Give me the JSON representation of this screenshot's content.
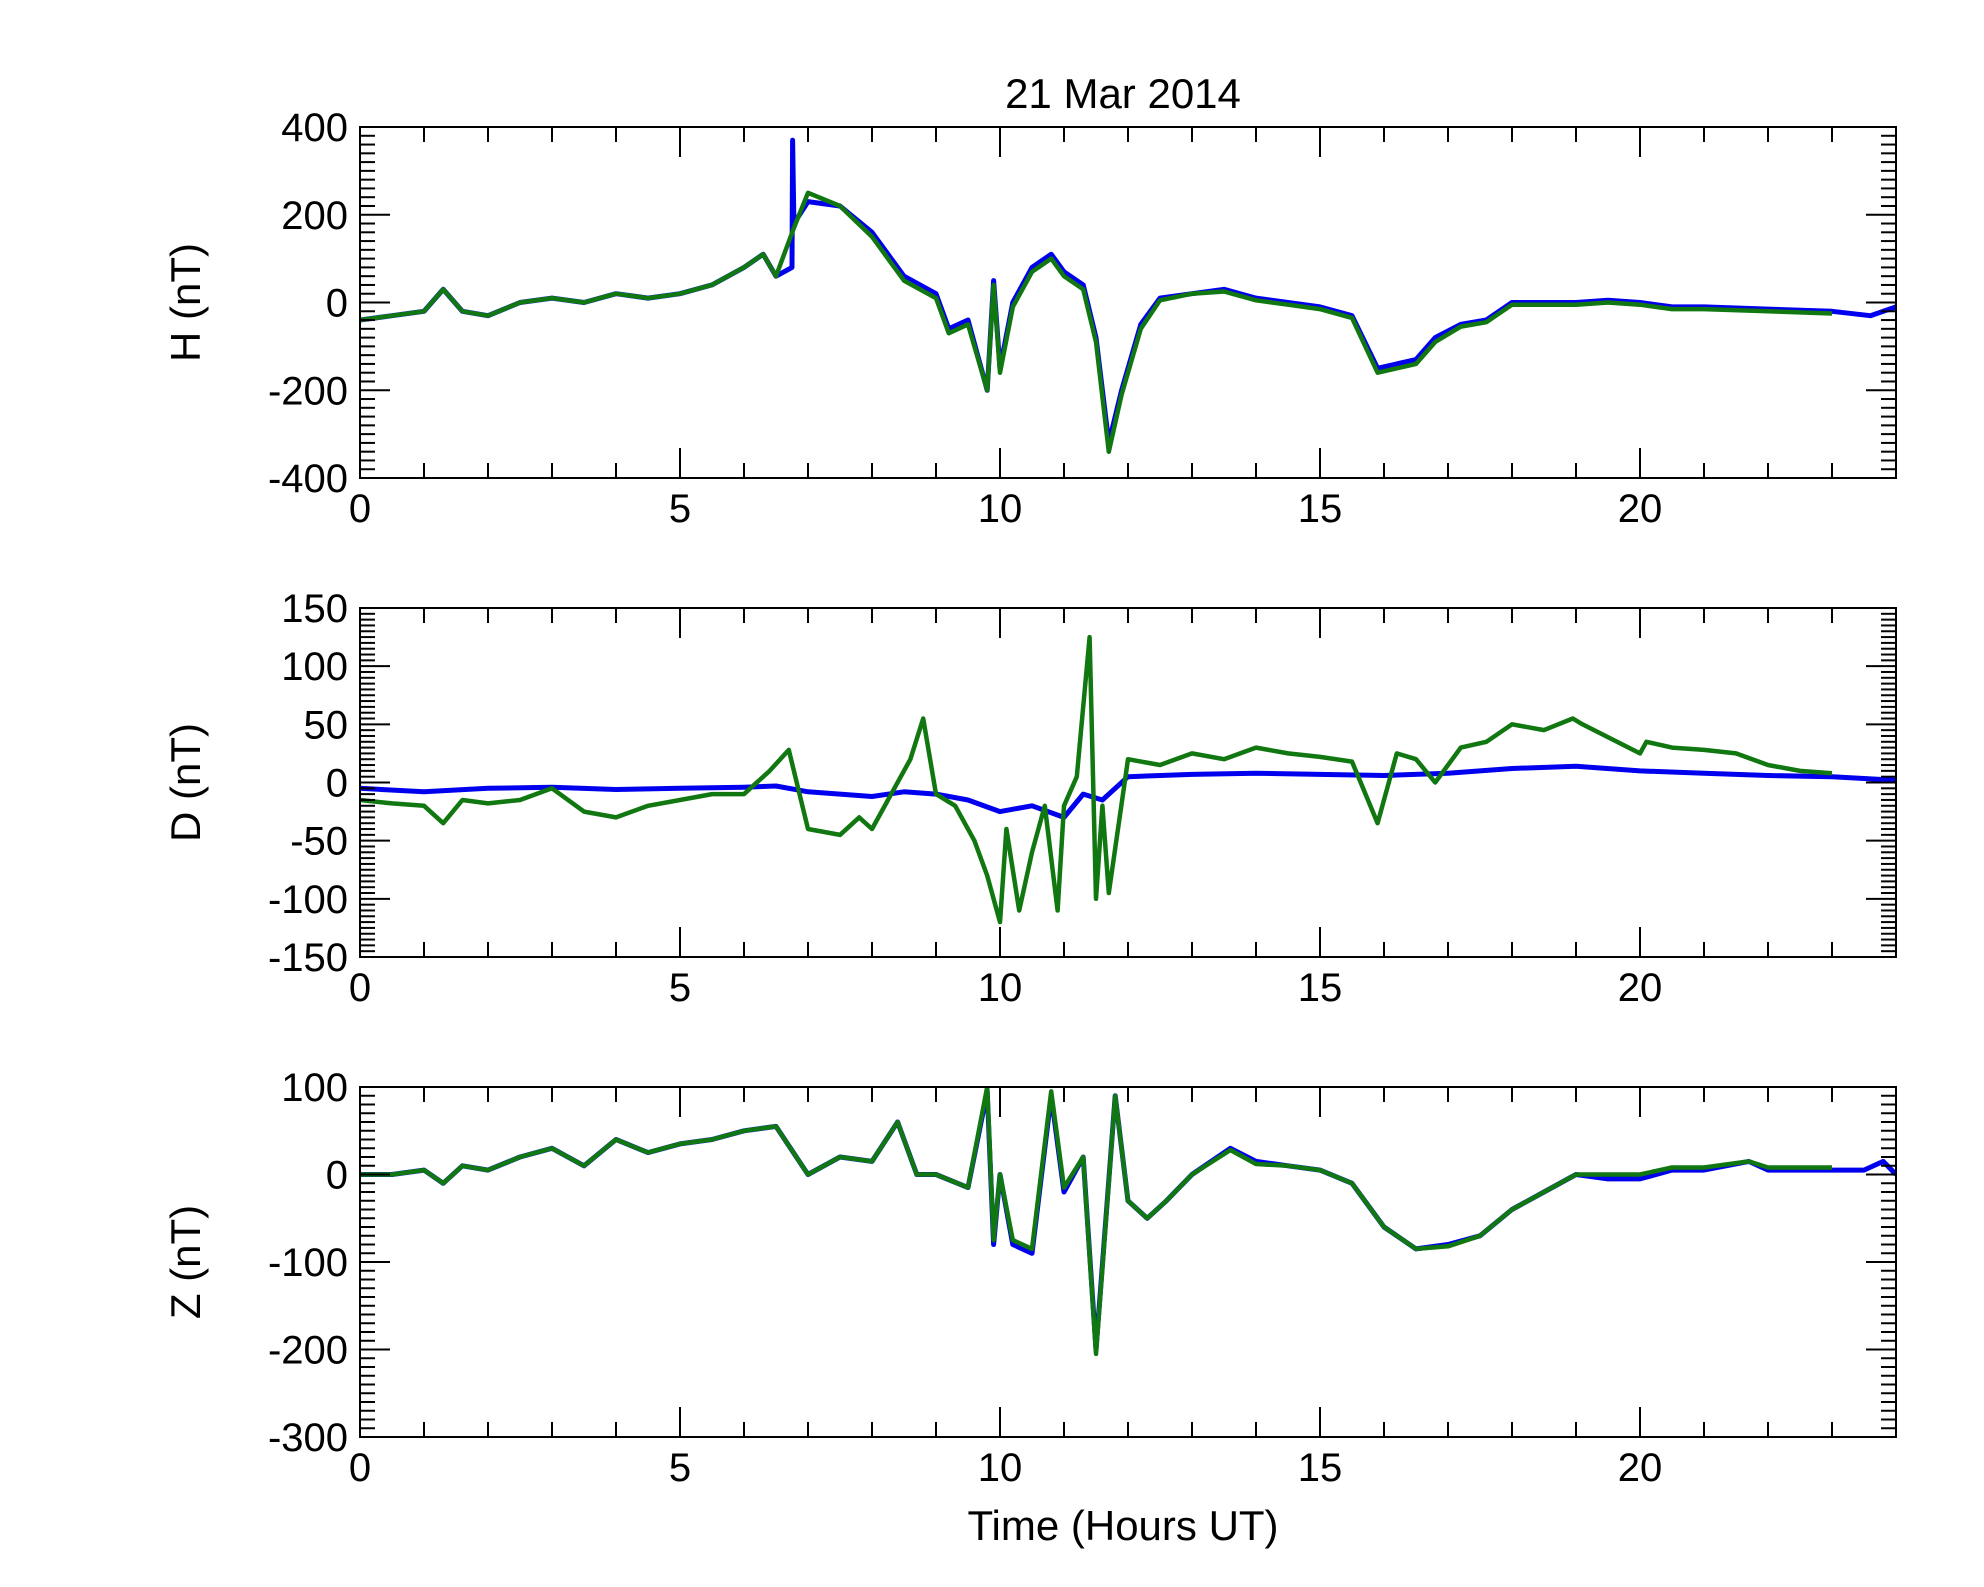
{
  "title": "21 Mar 2014",
  "xlabel": "Time (Hours UT)",
  "colors": {
    "series_1": "#0000ee",
    "series_2": "#117711",
    "axes": "#000000"
  },
  "chart_data": [
    {
      "type": "line",
      "ylabel": "H (nT)",
      "xlim": [
        0,
        24
      ],
      "ylim": [
        -400,
        400
      ],
      "xticks": [
        "0",
        "5",
        "10",
        "15",
        "20"
      ],
      "yticks": [
        "400",
        "200",
        "0",
        "-200",
        "-400"
      ],
      "grid": false,
      "series": [
        {
          "color": "#0000ee",
          "x": [
            0,
            0.5,
            1.0,
            1.3,
            1.6,
            2.0,
            2.5,
            3.0,
            3.5,
            4.0,
            4.5,
            5.0,
            5.5,
            6.0,
            6.3,
            6.5,
            6.75,
            6.76,
            6.78,
            7.0,
            7.5,
            8.0,
            8.5,
            9.0,
            9.2,
            9.5,
            9.8,
            9.9,
            10.0,
            10.2,
            10.5,
            10.8,
            11.0,
            11.3,
            11.5,
            11.7,
            11.9,
            12.2,
            12.5,
            13.0,
            13.5,
            14.0,
            14.5,
            15.0,
            15.5,
            15.9,
            16.2,
            16.5,
            16.8,
            17.2,
            17.6,
            18.0,
            18.5,
            19.0,
            19.5,
            20.0,
            20.5,
            21.0,
            22.0,
            23.0,
            23.6,
            24.0
          ],
          "y": [
            -40,
            -30,
            -20,
            30,
            -20,
            -30,
            0,
            10,
            0,
            20,
            10,
            20,
            40,
            80,
            110,
            60,
            80,
            370,
            180,
            230,
            220,
            160,
            60,
            20,
            -60,
            -40,
            -200,
            50,
            -150,
            0,
            80,
            110,
            70,
            40,
            -80,
            -320,
            -200,
            -50,
            10,
            20,
            30,
            10,
            0,
            -10,
            -30,
            -150,
            -140,
            -130,
            -80,
            -50,
            -40,
            0,
            0,
            0,
            5,
            0,
            -10,
            -10,
            -15,
            -20,
            -30,
            -10
          ]
        },
        {
          "color": "#117711",
          "x": [
            0,
            0.5,
            1.0,
            1.3,
            1.6,
            2.0,
            2.5,
            3.0,
            3.5,
            4.0,
            4.5,
            5.0,
            5.5,
            6.0,
            6.3,
            6.5,
            6.78,
            7.0,
            7.5,
            8.0,
            8.5,
            9.0,
            9.2,
            9.5,
            9.8,
            9.9,
            10.0,
            10.2,
            10.5,
            10.8,
            11.0,
            11.3,
            11.5,
            11.7,
            11.9,
            12.2,
            12.5,
            13.0,
            13.5,
            14.0,
            14.5,
            15.0,
            15.5,
            15.9,
            16.2,
            16.5,
            16.8,
            17.2,
            17.6,
            18.0,
            18.5,
            19.0,
            19.5,
            20.0,
            20.5,
            21.0,
            22.0,
            23.0
          ],
          "y": [
            -40,
            -30,
            -20,
            30,
            -20,
            -30,
            0,
            10,
            0,
            20,
            10,
            20,
            40,
            80,
            110,
            60,
            170,
            250,
            220,
            150,
            50,
            10,
            -70,
            -50,
            -200,
            40,
            -160,
            -10,
            70,
            100,
            60,
            30,
            -90,
            -340,
            -210,
            -60,
            5,
            20,
            25,
            5,
            -5,
            -15,
            -35,
            -160,
            -150,
            -140,
            -90,
            -55,
            -45,
            -5,
            -5,
            -5,
            0,
            -5,
            -15,
            -15,
            -20,
            -25
          ]
        }
      ]
    },
    {
      "type": "line",
      "ylabel": "D (nT)",
      "xlim": [
        0,
        24
      ],
      "ylim": [
        -150,
        150
      ],
      "xticks": [
        "0",
        "5",
        "10",
        "15",
        "20"
      ],
      "yticks": [
        "150",
        "100",
        "50",
        "0",
        "-50",
        "-100",
        "-150"
      ],
      "grid": false,
      "series": [
        {
          "color": "#0000ee",
          "x": [
            0,
            1,
            2,
            3,
            4,
            5,
            6,
            6.5,
            7,
            7.5,
            8,
            8.5,
            9,
            9.5,
            10,
            10.5,
            11,
            11.3,
            11.6,
            12,
            13,
            14,
            15,
            16,
            17,
            18,
            19,
            20,
            21,
            22,
            23,
            24
          ],
          "y": [
            -5,
            -8,
            -5,
            -4,
            -6,
            -5,
            -4,
            -3,
            -8,
            -10,
            -12,
            -8,
            -10,
            -15,
            -25,
            -20,
            -30,
            -10,
            -15,
            5,
            7,
            8,
            7,
            6,
            8,
            12,
            14,
            10,
            8,
            6,
            5,
            2
          ]
        },
        {
          "color": "#117711",
          "x": [
            0,
            0.5,
            1.0,
            1.3,
            1.6,
            2.0,
            2.5,
            3.0,
            3.5,
            4.0,
            4.5,
            5.0,
            5.5,
            6.0,
            6.4,
            6.7,
            7.0,
            7.5,
            7.8,
            8.0,
            8.3,
            8.6,
            8.8,
            9.0,
            9.3,
            9.6,
            9.8,
            10.0,
            10.1,
            10.3,
            10.5,
            10.7,
            10.9,
            11.0,
            11.2,
            11.4,
            11.5,
            11.6,
            11.7,
            12.0,
            12.5,
            13.0,
            13.5,
            14.0,
            14.5,
            15.0,
            15.5,
            15.9,
            16.2,
            16.5,
            16.8,
            17.2,
            17.6,
            18.0,
            18.5,
            18.95,
            19.1,
            20.0,
            20.1,
            20.5,
            21.0,
            21.5,
            22.0,
            22.5,
            23.0
          ],
          "y": [
            -15,
            -18,
            -20,
            -35,
            -15,
            -18,
            -15,
            -5,
            -25,
            -30,
            -20,
            -15,
            -10,
            -10,
            10,
            28,
            -40,
            -45,
            -30,
            -40,
            -10,
            20,
            55,
            -10,
            -20,
            -50,
            -80,
            -120,
            -40,
            -110,
            -60,
            -20,
            -110,
            -20,
            5,
            125,
            -100,
            -20,
            -95,
            20,
            15,
            25,
            20,
            30,
            25,
            22,
            18,
            -35,
            25,
            20,
            0,
            30,
            35,
            50,
            45,
            55,
            50,
            25,
            35,
            30,
            28,
            25,
            15,
            10,
            8
          ]
        }
      ]
    },
    {
      "type": "line",
      "ylabel": "Z (nT)",
      "xlim": [
        0,
        24
      ],
      "ylim": [
        -300,
        100
      ],
      "xticks": [
        "0",
        "5",
        "10",
        "15",
        "20"
      ],
      "yticks": [
        "100",
        "0",
        "-100",
        "-200",
        "-300"
      ],
      "grid": false,
      "series": [
        {
          "color": "#0000ee",
          "x": [
            0,
            0.5,
            1.0,
            1.3,
            1.6,
            2.0,
            2.5,
            3.0,
            3.5,
            4.0,
            4.5,
            5.0,
            5.5,
            6.0,
            6.5,
            7.0,
            7.5,
            8.0,
            8.4,
            8.7,
            9.0,
            9.5,
            9.8,
            9.9,
            10.0,
            10.2,
            10.5,
            10.8,
            11.0,
            11.3,
            11.5,
            11.8,
            12.0,
            12.3,
            12.6,
            13.0,
            13.6,
            14.0,
            14.5,
            15.0,
            15.5,
            16.0,
            16.5,
            17.0,
            17.5,
            18.0,
            18.5,
            19.0,
            19.5,
            20.0,
            20.5,
            21.0,
            21.7,
            22.0,
            22.5,
            23.0,
            23.5,
            23.8,
            24.0
          ],
          "y": [
            0,
            0,
            5,
            -10,
            10,
            5,
            20,
            30,
            10,
            40,
            25,
            35,
            40,
            50,
            55,
            0,
            20,
            15,
            60,
            0,
            0,
            -15,
            95,
            -80,
            0,
            -80,
            -90,
            90,
            -20,
            20,
            -200,
            90,
            -30,
            -50,
            -30,
            0,
            30,
            15,
            10,
            5,
            -10,
            -60,
            -85,
            -80,
            -70,
            -40,
            -20,
            0,
            -5,
            -5,
            5,
            5,
            15,
            5,
            5,
            5,
            5,
            15,
            0
          ]
        },
        {
          "color": "#117711",
          "x": [
            0,
            0.5,
            1.0,
            1.3,
            1.6,
            2.0,
            2.5,
            3.0,
            3.5,
            4.0,
            4.5,
            5.0,
            5.5,
            6.0,
            6.5,
            7.0,
            7.5,
            8.0,
            8.4,
            8.7,
            9.0,
            9.5,
            9.8,
            9.9,
            10.0,
            10.2,
            10.5,
            10.8,
            11.0,
            11.3,
            11.5,
            11.8,
            12.0,
            12.3,
            12.6,
            13.0,
            13.6,
            14.0,
            14.5,
            15.0,
            15.5,
            16.0,
            16.5,
            17.0,
            17.5,
            18.0,
            18.5,
            19.0,
            19.5,
            20.0,
            20.5,
            21.0,
            21.7,
            22.0,
            22.5,
            23.0
          ],
          "y": [
            0,
            0,
            5,
            -10,
            10,
            5,
            20,
            30,
            10,
            40,
            25,
            35,
            40,
            50,
            55,
            0,
            20,
            15,
            60,
            0,
            0,
            -15,
            100,
            -75,
            0,
            -75,
            -85,
            95,
            -15,
            20,
            -205,
            90,
            -30,
            -50,
            -30,
            0,
            28,
            12,
            10,
            5,
            -10,
            -60,
            -85,
            -82,
            -70,
            -40,
            -20,
            0,
            0,
            0,
            8,
            8,
            15,
            8,
            8,
            8
          ]
        }
      ]
    }
  ]
}
